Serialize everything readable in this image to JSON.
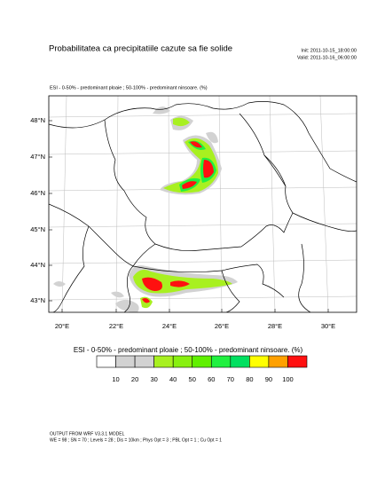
{
  "header": {
    "title": "Probabilitatea ca precipitatiile cazute sa fie solide",
    "init": "Init: 2011-10-15_18:00:00",
    "valid": "Valid: 2011-10-16_06:00:00"
  },
  "map": {
    "subtitle": "ESI - 0-50% - predominant ploaie ; 50-100% - predominant ninsoare.   (%)",
    "lat_labels": [
      "48°N",
      "47°N",
      "46°N",
      "45°N",
      "44°N",
      "43°N"
    ],
    "lon_labels": [
      "20°E",
      "22°E",
      "24°E",
      "26°E",
      "28°E",
      "30°E"
    ]
  },
  "colorbar": {
    "title": "ESI - 0-50% - predominant ploaie ; 50-100% - predominant ninsoare.   (%)",
    "colors": [
      "#ffffff",
      "#d2d2d2",
      "#d2d2d2",
      "#a8f020",
      "#88f010",
      "#60f000",
      "#20f040",
      "#00e060",
      "#ffff00",
      "#ffa000",
      "#ff1010"
    ],
    "labels": [
      10,
      20,
      30,
      40,
      50,
      60,
      70,
      80,
      90,
      100
    ]
  },
  "footer": {
    "line1": "OUTPUT FROM WRF V3.3.1 MODEL",
    "line2": "WE = 98 ; SN = 70 ; Levels = 28 ; Dis = 10km ; Phys Opt = 3 ; PBL Opt = 1 ; Cu Opt = 1"
  }
}
